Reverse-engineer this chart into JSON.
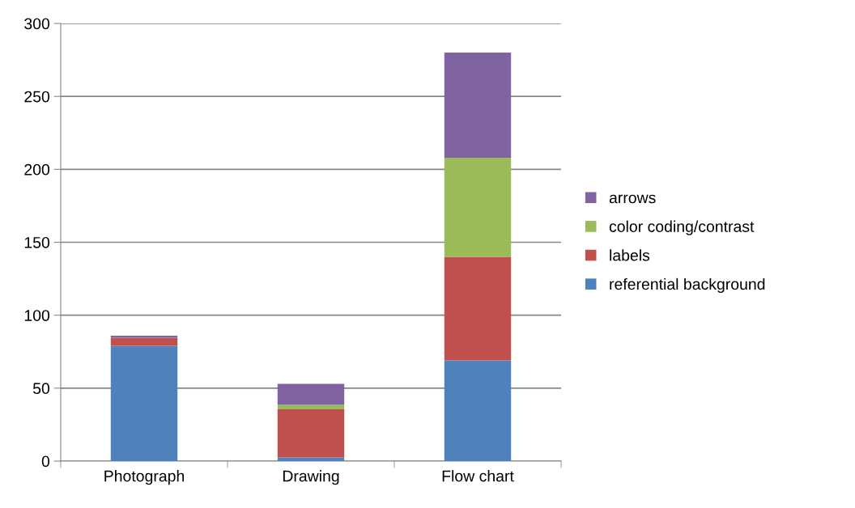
{
  "chart_data": {
    "type": "bar",
    "stacked": true,
    "categories": [
      "Photograph",
      "Drawing",
      "Flow chart"
    ],
    "series": [
      {
        "name": "referential background",
        "color": "#4f81bd",
        "values": [
          79,
          2.5,
          69
        ]
      },
      {
        "name": "labels",
        "color": "#c0504d",
        "values": [
          5.5,
          33,
          71
        ]
      },
      {
        "name": "color coding/contrast",
        "color": "#9bbb59",
        "values": [
          0,
          3,
          68
        ]
      },
      {
        "name": "arrows",
        "color": "#8064a2",
        "values": [
          1.5,
          14.5,
          72
        ]
      }
    ],
    "ylim": [
      0,
      300
    ],
    "yticks": [
      0,
      50,
      100,
      150,
      200,
      250,
      300
    ],
    "grid": "y",
    "legend": "right"
  }
}
